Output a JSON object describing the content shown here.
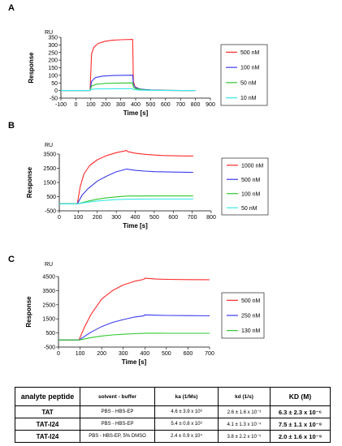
{
  "chart_data": [
    {
      "panel": "A",
      "type": "line",
      "unit_label": "RU",
      "ylabel": "Response",
      "xlabel": "Time [s]",
      "xlim": [
        -100,
        900
      ],
      "ylim": [
        -50,
        350
      ],
      "xticks": [
        -100,
        0,
        100,
        200,
        300,
        400,
        500,
        600,
        700,
        800,
        900
      ],
      "yticks": [
        -50,
        0,
        50,
        100,
        150,
        200,
        250,
        300,
        350
      ],
      "legend_position": "right",
      "series": [
        {
          "name": "500 nM",
          "color": "#ff2a2a",
          "x": [
            -100,
            95,
            105,
            120,
            150,
            200,
            250,
            300,
            380,
            385,
            395,
            420,
            460,
            500,
            600,
            700,
            800
          ],
          "y": [
            0,
            0,
            240,
            285,
            310,
            325,
            331,
            334,
            336,
            60,
            25,
            12,
            6,
            3,
            1,
            0,
            0
          ]
        },
        {
          "name": "100 nM",
          "color": "#3a3af0",
          "x": [
            -100,
            95,
            105,
            130,
            180,
            250,
            300,
            380,
            385,
            400,
            440,
            500,
            600,
            700,
            800
          ],
          "y": [
            0,
            0,
            60,
            85,
            95,
            99,
            100,
            101,
            40,
            18,
            8,
            4,
            1,
            0,
            0
          ]
        },
        {
          "name": "50 nM",
          "color": "#2ec82e",
          "x": [
            -100,
            95,
            105,
            140,
            200,
            300,
            380,
            385,
            400,
            450,
            500,
            600,
            700,
            800
          ],
          "y": [
            0,
            0,
            30,
            42,
            47,
            49,
            50,
            22,
            12,
            5,
            2,
            1,
            0,
            0
          ]
        },
        {
          "name": "10 nM",
          "color": "#3ae8e8",
          "x": [
            -100,
            95,
            105,
            150,
            250,
            380,
            385,
            420,
            500,
            600,
            700,
            800
          ],
          "y": [
            0,
            0,
            8,
            11,
            12,
            12,
            6,
            3,
            1,
            0,
            0,
            0
          ]
        }
      ]
    },
    {
      "panel": "B",
      "type": "line",
      "unit_label": "RU",
      "ylabel": "Response",
      "xlabel": "Time [s]",
      "xlim": [
        0,
        800
      ],
      "ylim": [
        -500,
        3500
      ],
      "xticks": [
        0,
        100,
        200,
        300,
        400,
        500,
        600,
        700,
        800
      ],
      "yticks": [
        -500,
        500,
        1500,
        2500,
        3500
      ],
      "legend_position": "right",
      "series": [
        {
          "name": "1000 nM",
          "color": "#ff2a2a",
          "x": [
            0,
            95,
            110,
            130,
            160,
            200,
            250,
            300,
            355,
            360,
            400,
            450,
            500,
            550,
            600,
            650,
            705
          ],
          "y": [
            0,
            0,
            1200,
            2100,
            2700,
            3100,
            3400,
            3600,
            3750,
            3680,
            3560,
            3480,
            3430,
            3400,
            3380,
            3370,
            3360
          ]
        },
        {
          "name": "500 nM",
          "color": "#3a3af0",
          "x": [
            0,
            95,
            120,
            150,
            200,
            250,
            300,
            355,
            360,
            400,
            450,
            500,
            600,
            705
          ],
          "y": [
            0,
            0,
            600,
            1050,
            1600,
            1950,
            2250,
            2450,
            2430,
            2350,
            2300,
            2260,
            2230,
            2210
          ]
        },
        {
          "name": "100 nM",
          "color": "#2ec82e",
          "x": [
            0,
            95,
            150,
            200,
            250,
            300,
            355,
            360,
            400,
            500,
            600,
            705
          ],
          "y": [
            0,
            0,
            180,
            320,
            420,
            480,
            540,
            545,
            545,
            550,
            550,
            550
          ]
        },
        {
          "name": "50 nM",
          "color": "#3ae8e8",
          "x": [
            0,
            95,
            150,
            200,
            250,
            300,
            355,
            360,
            400,
            500,
            600,
            705
          ],
          "y": [
            0,
            0,
            110,
            190,
            250,
            290,
            320,
            320,
            325,
            330,
            330,
            330
          ]
        }
      ]
    },
    {
      "panel": "C",
      "type": "line",
      "unit_label": "RU",
      "ylabel": "Response",
      "xlabel": "Time [s]",
      "xlim": [
        0,
        700
      ],
      "ylim": [
        -500,
        4500
      ],
      "xticks": [
        0,
        100,
        200,
        300,
        400,
        500,
        600,
        700
      ],
      "yticks": [
        -500,
        500,
        1500,
        2500,
        3500,
        4500
      ],
      "legend_position": "right",
      "series": [
        {
          "name": "500 nM",
          "color": "#ff2a2a",
          "x": [
            0,
            95,
            120,
            150,
            200,
            250,
            300,
            350,
            395,
            400,
            450,
            500,
            600,
            700
          ],
          "y": [
            0,
            0,
            900,
            1800,
            2900,
            3500,
            3900,
            4150,
            4300,
            4380,
            4320,
            4300,
            4280,
            4270
          ]
        },
        {
          "name": "250 nM",
          "color": "#3a3af0",
          "x": [
            0,
            95,
            150,
            200,
            250,
            300,
            350,
            395,
            400,
            450,
            500,
            600,
            700
          ],
          "y": [
            0,
            0,
            550,
            950,
            1250,
            1450,
            1620,
            1720,
            1780,
            1760,
            1740,
            1730,
            1720
          ]
        },
        {
          "name": "130 nM",
          "color": "#2ec82e",
          "x": [
            0,
            95,
            150,
            200,
            250,
            300,
            350,
            395,
            400,
            450,
            500,
            600,
            700
          ],
          "y": [
            0,
            0,
            170,
            280,
            360,
            410,
            450,
            470,
            480,
            480,
            475,
            475,
            475
          ]
        }
      ]
    }
  ],
  "table": {
    "headers": {
      "peptide": "analyte peptide",
      "solvent": "solvent - buffer",
      "ka": "ka (1/Ms)",
      "kd": "kd (1/s)",
      "KD": "KD (M)"
    },
    "rows": [
      {
        "peptide": "TAT",
        "solvent": "PBS - HBS-EP",
        "ka": "4.6 ± 3.9 x 10³",
        "kd": "2.6 ± 1.6 x 10⁻³",
        "KD": "6.3 ± 2.3 x 10⁻⁶"
      },
      {
        "peptide": "TAT-I24",
        "solvent": "PBS - HBS-EP",
        "ka": "5.4 ± 0.8 x 10³",
        "kd": "4.1 ± 1.3 x 10⁻⁴",
        "KD": "7.5 ± 1.1 x 10⁻⁸"
      },
      {
        "peptide": "TAT-I24",
        "solvent": "PBS - HBS-EP, 5% DMSO",
        "ka": "2.4 ± 0.9 x 10⁴",
        "kd": "3.8 ± 2.2 x 10⁻⁵",
        "KD": "2.0 ± 1.6 x 10⁻⁹"
      }
    ]
  }
}
